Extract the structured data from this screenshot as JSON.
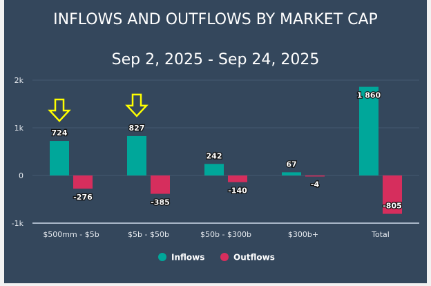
{
  "chart_data": {
    "type": "bar",
    "title": "INFLOWS AND OUTFLOWS BY MARKET CAP",
    "subtitle": "Sep 2, 2025 - Sep 24, 2025",
    "categories": [
      "$500mm - $5b",
      "$5b - $50b",
      "$50b - $300b",
      "$300b+",
      "Total"
    ],
    "series": [
      {
        "name": "Inflows",
        "color": "#00a79a",
        "values": [
          724,
          827,
          242,
          67,
          1860
        ],
        "labels": [
          "724",
          "827",
          "242",
          "67",
          "1 860"
        ]
      },
      {
        "name": "Outflows",
        "color": "#d62e5d",
        "values": [
          -276,
          -385,
          -140,
          -4,
          -805
        ],
        "labels": [
          "-276",
          "-385",
          "-140",
          "-4",
          "-805"
        ]
      }
    ],
    "ylim": [
      -1000,
      2000
    ],
    "yticks": [
      {
        "v": 2000,
        "label": "2k"
      },
      {
        "v": 1000,
        "label": "1k"
      },
      {
        "v": 0,
        "label": "0"
      },
      {
        "v": -1000,
        "label": "-1k"
      }
    ],
    "grid": true,
    "legend": "bottom-center",
    "annotations": [
      {
        "type": "arrow-down",
        "color": "#ffff00",
        "category_index": 0
      },
      {
        "type": "arrow-down",
        "color": "#ffff00",
        "category_index": 1
      }
    ]
  }
}
